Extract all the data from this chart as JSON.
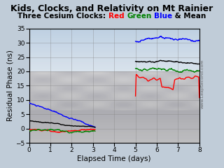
{
  "title": "Kids, Clocks, and Relativity on Mt Rainier",
  "subtitle_texts": [
    "Three Cesium Clocks: ",
    "Red",
    " ",
    "Green",
    " ",
    "Blue",
    " & Mean"
  ],
  "subtitle_colors": [
    "black",
    "red",
    "black",
    "green",
    "black",
    "blue",
    "black"
  ],
  "xlabel": "Elapsed Time (days)",
  "ylabel": "Residual Phase (ns)",
  "xlim": [
    0,
    8
  ],
  "ylim": [
    -5,
    35
  ],
  "xticks": [
    0,
    1,
    2,
    3,
    4,
    5,
    6,
    7,
    8
  ],
  "yticks": [
    -5,
    0,
    5,
    10,
    15,
    20,
    25,
    30,
    35
  ],
  "watermark": "www.LeapSecond.com",
  "bg_color": "#c0ccd8",
  "title_fontsize": 9,
  "subtitle_fontsize": 7.5,
  "axis_label_fontsize": 7.5,
  "tick_fontsize": 6.5,
  "line_width": 1.0,
  "colors": [
    "blue",
    "black",
    "red",
    "green"
  ]
}
